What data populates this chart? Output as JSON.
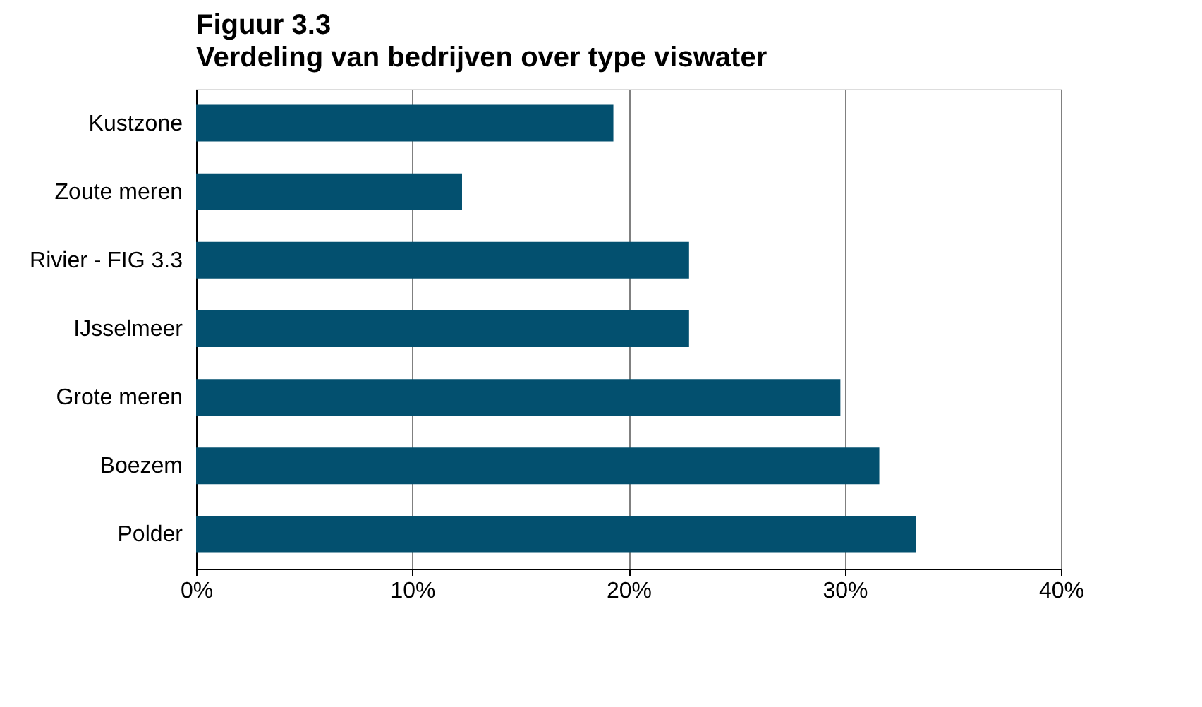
{
  "chart_data": {
    "type": "bar",
    "orientation": "horizontal",
    "title": "Figuur 3.3",
    "subtitle": "Verdeling van bedrijven over type viswater",
    "categories": [
      "Kustzone",
      "Zoute meren",
      "Rivier - FIG 3.3",
      "IJsselmeer",
      "Grote meren",
      "Boezem",
      "Polder"
    ],
    "values": [
      19.3,
      12.3,
      22.8,
      22.8,
      29.8,
      31.6,
      33.3
    ],
    "color": "#03506f",
    "xlim": [
      0,
      40
    ],
    "xticks": [
      {
        "value": 0,
        "label": "0%"
      },
      {
        "value": 10,
        "label": "10%"
      },
      {
        "value": 20,
        "label": "20%"
      },
      {
        "value": 30,
        "label": "30%"
      },
      {
        "value": 40,
        "label": "40%"
      }
    ],
    "grid": "x"
  }
}
